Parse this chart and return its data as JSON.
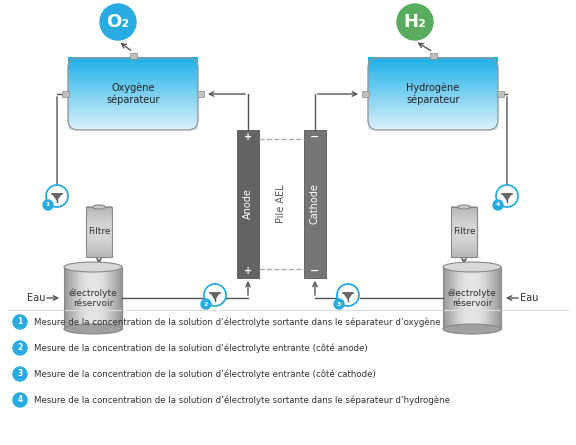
{
  "bg_color": "#ffffff",
  "o2_circle_color": "#29abe2",
  "h2_circle_color": "#5aab5e",
  "sep_gradient_top": "#b8e8f8",
  "sep_gradient_bot": "#4ec8f0",
  "electrode_dark": "#606060",
  "electrode_mid": "#787878",
  "tank_color": "#b8b8b8",
  "filter_color": "#c8c8c8",
  "line_color": "#555555",
  "dashed_color": "#aaaaaa",
  "legend_circle_color": "#29abe2",
  "o2_label": "O₂",
  "h2_label": "H₂",
  "oxy_sep_label": "Oxygène\nséparateur",
  "hyd_sep_label": "Hydrogène\nséparateur",
  "anode_label": "Anode",
  "cathode_label": "Cathode",
  "pile_label": "Pile AEL",
  "filtre_label": "Filtre",
  "tank_label": "électrolyte\nréservoir",
  "eau_label": "Eau",
  "legend_items": [
    "Mesure de la concentration de la solution d’électrolyte sortante dans le séparateur d’oxygène",
    "Mesure de la concentration de la solution d’électrolyte entrante (côté anode)",
    "Mesure de la concentration de la solution d’électrolyte entrante (côté cathode)",
    "Mesure de la concentration de la solution d’électrolyte sortante dans le séparateur d’hydrogène"
  ]
}
